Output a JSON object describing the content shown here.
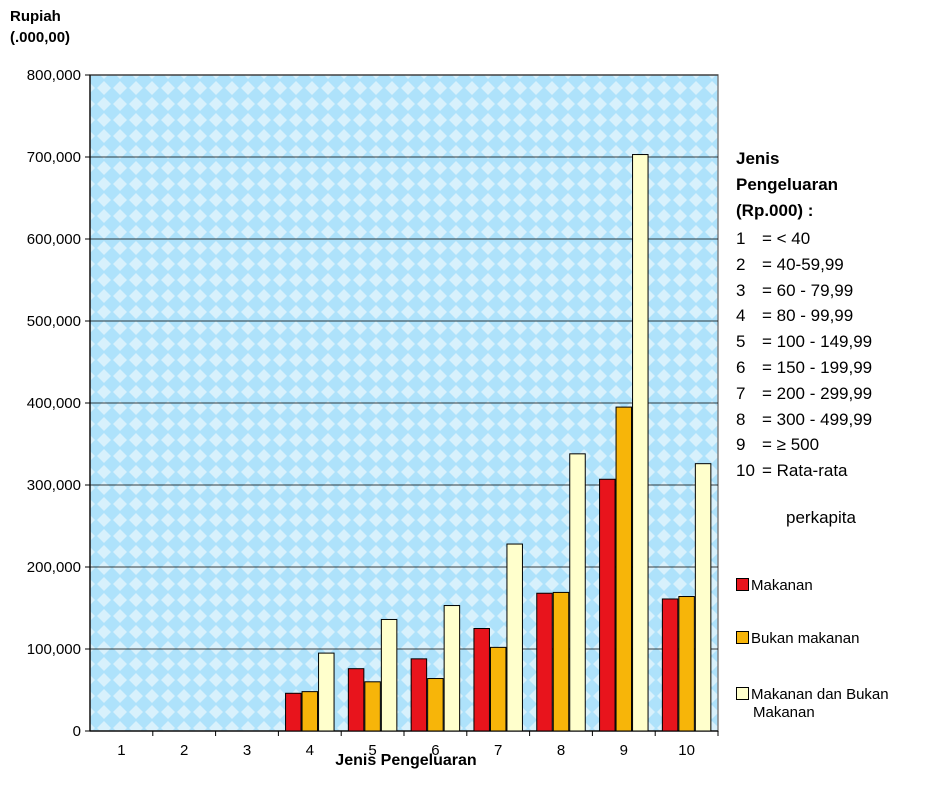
{
  "chart_data": {
    "type": "bar",
    "ylabel_line1": "Rupiah",
    "ylabel_line2": "(.000,00)",
    "xlabel": "Jenis Pengeluaran",
    "ylim": [
      0,
      800000
    ],
    "yticks": [
      0,
      100000,
      200000,
      300000,
      400000,
      500000,
      600000,
      700000,
      800000
    ],
    "ytick_labels": [
      "0",
      "100,000",
      "200,000",
      "300,000",
      "400,000",
      "500,000",
      "600,000",
      "700,000",
      "800,000"
    ],
    "categories": [
      "1",
      "2",
      "3",
      "4",
      "5",
      "6",
      "7",
      "8",
      "9",
      "10"
    ],
    "series": [
      {
        "name": "Makanan",
        "color": "#e8141c",
        "values": [
          0,
          0,
          0,
          46000,
          76000,
          88000,
          125000,
          168000,
          307000,
          161000
        ]
      },
      {
        "name": "Bukan makanan",
        "color": "#f7b509",
        "values": [
          0,
          0,
          0,
          48000,
          60000,
          64000,
          102000,
          169000,
          395000,
          164000
        ]
      },
      {
        "name": "Makanan dan Bukan Makanan",
        "name_line1": "Makanan dan Bukan",
        "name_line2": "Makanan",
        "color": "#ffffcc",
        "values": [
          0,
          0,
          0,
          95000,
          136000,
          153000,
          228000,
          338000,
          703000,
          326000
        ]
      }
    ],
    "grid": true,
    "legend_position": "right",
    "plot_background": "#aee2fb",
    "legend_title_lines": [
      "Jenis",
      "Pengeluaran",
      "(Rp.000) :"
    ],
    "category_key": [
      {
        "num": "1",
        "text": "= < 40"
      },
      {
        "num": "2",
        "text": "= 40-59,99"
      },
      {
        "num": "3",
        "text": "= 60 - 79,99"
      },
      {
        "num": "4",
        "text": "= 80 - 99,99"
      },
      {
        "num": "5",
        "text": "= 100 - 149,99"
      },
      {
        "num": "6",
        "text": "= 150 - 199,99"
      },
      {
        "num": "7",
        "text": "= 200 - 299,99"
      },
      {
        "num": "8",
        "text": "= 300 - 499,99"
      },
      {
        "num": "9",
        "text": "= ≥ 500"
      },
      {
        "num": "10",
        "text": "= Rata-rata"
      }
    ],
    "category_key_continuation": "perkapita"
  }
}
